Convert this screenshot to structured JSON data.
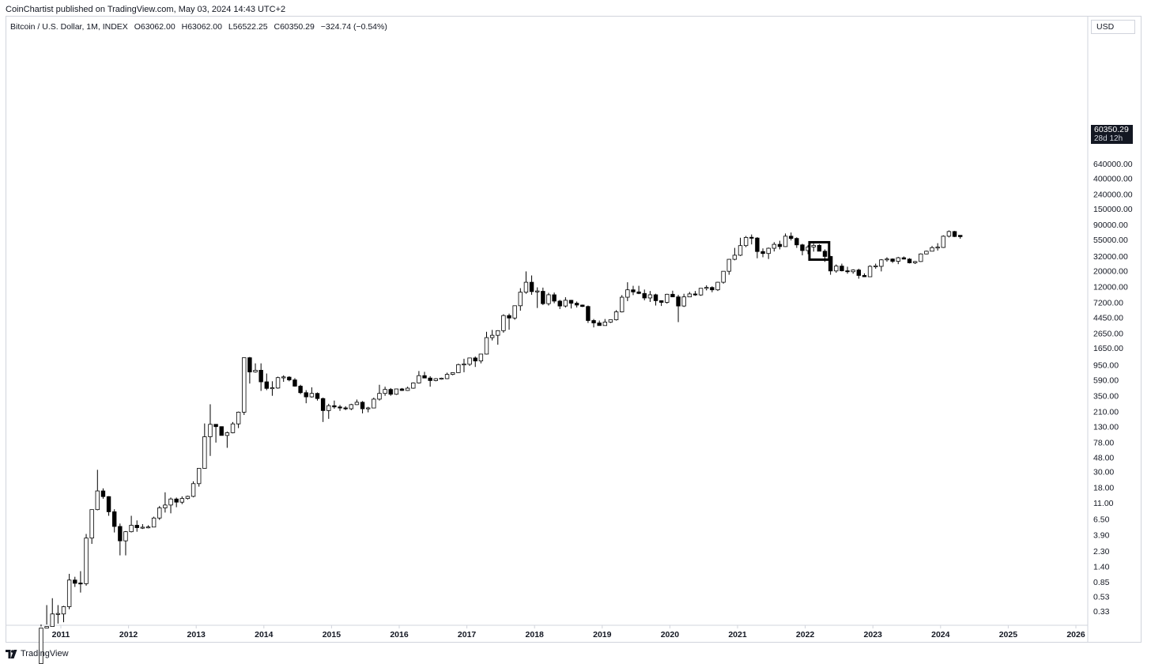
{
  "header": {
    "published_line": "CoinChartist published on TradingView.com, May 03, 2024 14:43 UTC+2"
  },
  "legend": {
    "symbol": "Bitcoin / U.S. Dollar, 1M, INDEX",
    "open": "O63062.00",
    "high": "H63062.00",
    "low": "L56522.25",
    "close": "C60350.29",
    "change": "−324.74 (−0.54%)"
  },
  "price_axis": {
    "currency": "USD",
    "last_price": "60350.29",
    "countdown": "28d 12h"
  },
  "footer": {
    "brand": "TradingView"
  },
  "colors": {
    "up_body": "#ffffff",
    "down_body": "#000000",
    "wick": "#000000",
    "border": "#d1d4dc",
    "highlight_box": "#000000"
  },
  "chart_data": {
    "type": "candlestick",
    "scale": "log",
    "title": "Bitcoin / U.S. Dollar, 1M, INDEX",
    "x_ticks": [
      "2011",
      "2012",
      "2013",
      "2014",
      "2015",
      "2016",
      "2017",
      "2018",
      "2019",
      "2020",
      "2021",
      "2022",
      "2023",
      "2024",
      "2025",
      "2026"
    ],
    "y_ticks": [
      "0.33",
      "0.53",
      "0.85",
      "1.40",
      "2.30",
      "3.90",
      "6.50",
      "11.00",
      "18.00",
      "30.00",
      "48.00",
      "78.00",
      "130.00",
      "210.00",
      "350.00",
      "590.00",
      "950.00",
      "1650.00",
      "2650.00",
      "4450.00",
      "7200.00",
      "12000.00",
      "20000.00",
      "32000.00",
      "55000.00",
      "90000.00",
      "150000.00",
      "240000.00",
      "400000.00",
      "640000.00"
    ],
    "y_tick_values": [
      0.33,
      0.53,
      0.85,
      1.4,
      2.3,
      3.9,
      6.5,
      11,
      18,
      30,
      48,
      78,
      130,
      210,
      350,
      590,
      950,
      1650,
      2650,
      4450,
      7200,
      12000,
      20000,
      32000,
      55000,
      90000,
      150000,
      240000,
      400000,
      640000
    ],
    "start": "2010-09",
    "candles": [
      [
        0.06,
        0.2,
        0.06,
        0.19
      ],
      [
        0.19,
        0.4,
        0.15,
        0.2
      ],
      [
        0.2,
        0.5,
        0.2,
        0.3
      ],
      [
        0.3,
        0.4,
        0.22,
        0.3
      ],
      [
        0.3,
        0.39,
        0.23,
        0.38
      ],
      [
        0.38,
        1.1,
        0.35,
        0.9
      ],
      [
        0.9,
        1.0,
        0.72,
        0.81
      ],
      [
        0.81,
        1.2,
        0.6,
        0.8
      ],
      [
        0.8,
        4.0,
        0.75,
        3.5
      ],
      [
        3.5,
        8.8,
        2.9,
        8.8
      ],
      [
        8.8,
        31.9,
        8.6,
        16.1
      ],
      [
        16.1,
        17.5,
        12.5,
        13.4
      ],
      [
        13.4,
        13.6,
        7.2,
        8.2
      ],
      [
        8.2,
        8.9,
        4.2,
        5.1
      ],
      [
        5.1,
        5.6,
        2.0,
        3.2
      ],
      [
        3.2,
        4.4,
        2.0,
        4.3
      ],
      [
        4.3,
        7.2,
        4.2,
        5.3
      ],
      [
        5.3,
        6.2,
        4.3,
        4.9
      ],
      [
        4.9,
        5.5,
        4.7,
        4.9
      ],
      [
        4.9,
        5.3,
        4.8,
        5.0
      ],
      [
        5.0,
        7.0,
        5.0,
        6.7
      ],
      [
        6.7,
        9.9,
        6.3,
        9.3
      ],
      [
        9.3,
        15.4,
        8.0,
        10.2
      ],
      [
        10.2,
        13.0,
        7.8,
        12.4
      ],
      [
        12.4,
        13.0,
        9.5,
        11.2
      ],
      [
        11.2,
        13.5,
        10.5,
        12.6
      ],
      [
        12.6,
        13.8,
        12.2,
        13.5
      ],
      [
        13.5,
        22.0,
        13.1,
        20.4
      ],
      [
        20.4,
        33.0,
        18.5,
        33.4
      ],
      [
        33.4,
        143.0,
        33.0,
        93.0
      ],
      [
        93.0,
        266.0,
        50.0,
        139.0
      ],
      [
        139.0,
        140.0,
        77.0,
        129.0
      ],
      [
        129.0,
        130.0,
        100.0,
        97.0
      ],
      [
        97.0,
        110.0,
        65.0,
        106.0
      ],
      [
        106.0,
        150.0,
        104.0,
        141.0
      ],
      [
        141.0,
        210.0,
        123.0,
        206.0
      ],
      [
        206.0,
        1160.0,
        188.0,
        1200.0
      ],
      [
        1200.0,
        1230.0,
        520.0,
        757.0
      ],
      [
        757.0,
        1000.0,
        740.0,
        800.0
      ],
      [
        800.0,
        1000.0,
        410.0,
        550.0
      ],
      [
        550.0,
        720.0,
        420.0,
        445.0
      ],
      [
        445.0,
        560.0,
        350.0,
        450.0
      ],
      [
        450.0,
        650.0,
        440.0,
        630.0
      ],
      [
        630.0,
        680.0,
        550.0,
        640.0
      ],
      [
        640.0,
        660.0,
        560.0,
        585.0
      ],
      [
        585.0,
        620.0,
        470.0,
        478.0
      ],
      [
        478.0,
        500.0,
        370.0,
        387.0
      ],
      [
        387.0,
        420.0,
        275.0,
        338.0
      ],
      [
        338.0,
        460.0,
        330.0,
        378.0
      ],
      [
        378.0,
        390.0,
        300.0,
        320.0
      ],
      [
        320.0,
        330.0,
        150.0,
        217.0
      ],
      [
        217.0,
        270.0,
        166.0,
        254.0
      ],
      [
        254.0,
        300.0,
        230.0,
        244.0
      ],
      [
        244.0,
        260.0,
        215.0,
        236.0
      ],
      [
        236.0,
        250.0,
        220.0,
        230.0
      ],
      [
        230.0,
        270.0,
        220.0,
        263.0
      ],
      [
        263.0,
        310.0,
        260.0,
        284.0
      ],
      [
        284.0,
        295.0,
        198.0,
        230.0
      ],
      [
        230.0,
        245.0,
        205.0,
        236.0
      ],
      [
        236.0,
        330.0,
        235.0,
        314.0
      ],
      [
        314.0,
        500.0,
        300.0,
        378.0
      ],
      [
        378.0,
        470.0,
        350.0,
        430.0
      ],
      [
        430.0,
        450.0,
        350.0,
        368.0
      ],
      [
        368.0,
        440.0,
        360.0,
        437.0
      ],
      [
        437.0,
        450.0,
        410.0,
        416.0
      ],
      [
        416.0,
        470.0,
        410.0,
        448.0
      ],
      [
        448.0,
        540.0,
        440.0,
        530.0
      ],
      [
        530.0,
        780.0,
        520.0,
        672.0
      ],
      [
        672.0,
        760.0,
        620.0,
        622.0
      ],
      [
        622.0,
        660.0,
        470.0,
        573.0
      ],
      [
        573.0,
        620.0,
        560.0,
        608.0
      ],
      [
        608.0,
        630.0,
        590.0,
        610.0
      ],
      [
        610.0,
        740.0,
        600.0,
        700.0
      ],
      [
        700.0,
        750.0,
        680.0,
        740.0
      ],
      [
        740.0,
        990.0,
        730.0,
        960.0
      ],
      [
        960.0,
        1160.0,
        750.0,
        970.0
      ],
      [
        970.0,
        1200.0,
        920.0,
        1190.0
      ],
      [
        1190.0,
        1250.0,
        890.0,
        1080.0
      ],
      [
        1080.0,
        1350.0,
        1000.0,
        1350.0
      ],
      [
        1350.0,
        2780.0,
        1330.0,
        2300.0
      ],
      [
        2300.0,
        2950.0,
        2100.0,
        2480.0
      ],
      [
        2480.0,
        2920.0,
        1830.0,
        2880.0
      ],
      [
        2880.0,
        4900.0,
        2700.0,
        4700.0
      ],
      [
        4700.0,
        5000.0,
        2970.0,
        4340.0
      ],
      [
        4340.0,
        6400.0,
        4100.0,
        6450.0
      ],
      [
        6450.0,
        11400.0,
        5500.0,
        10000.0
      ],
      [
        10000.0,
        19600.0,
        9500.0,
        13800.0
      ],
      [
        13800.0,
        17200.0,
        9200.0,
        10200.0
      ],
      [
        10200.0,
        11700.0,
        6000.0,
        10300.0
      ],
      [
        10300.0,
        11600.0,
        6600.0,
        6900.0
      ],
      [
        6900.0,
        9800.0,
        6500.0,
        9200.0
      ],
      [
        9200.0,
        9900.0,
        7000.0,
        7500.0
      ],
      [
        7500.0,
        7800.0,
        5800.0,
        6400.0
      ],
      [
        6400.0,
        8500.0,
        6100.0,
        7700.0
      ],
      [
        7700.0,
        7800.0,
        5900.0,
        7000.0
      ],
      [
        7000.0,
        7400.0,
        6100.0,
        6600.0
      ],
      [
        6600.0,
        6700.0,
        6200.0,
        6300.0
      ],
      [
        6300.0,
        6500.0,
        3700.0,
        4000.0
      ],
      [
        4000.0,
        4200.0,
        3200.0,
        3700.0
      ],
      [
        3700.0,
        4000.0,
        3400.0,
        3400.0
      ],
      [
        3400.0,
        4200.0,
        3400.0,
        3800.0
      ],
      [
        3800.0,
        4100.0,
        3700.0,
        4100.0
      ],
      [
        4100.0,
        5600.0,
        4000.0,
        5300.0
      ],
      [
        5300.0,
        9100.0,
        5200.0,
        8500.0
      ],
      [
        8500.0,
        13800.0,
        7500.0,
        10800.0
      ],
      [
        10800.0,
        12300.0,
        9100.0,
        10100.0
      ],
      [
        10100.0,
        12300.0,
        9400.0,
        9600.0
      ],
      [
        9600.0,
        10900.0,
        7700.0,
        8300.0
      ],
      [
        8300.0,
        10400.0,
        7300.0,
        9200.0
      ],
      [
        9200.0,
        9500.0,
        6500.0,
        7600.0
      ],
      [
        7600.0,
        7700.0,
        6400.0,
        7200.0
      ],
      [
        7200.0,
        9500.0,
        6900.0,
        9350.0
      ],
      [
        9350.0,
        10500.0,
        8500.0,
        8600.0
      ],
      [
        8600.0,
        9200.0,
        3800.0,
        6400.0
      ],
      [
        6400.0,
        9500.0,
        6200.0,
        8600.0
      ],
      [
        8600.0,
        10100.0,
        8600.0,
        9450.0
      ],
      [
        9450.0,
        10400.0,
        8900.0,
        9150.0
      ],
      [
        9150.0,
        11400.0,
        8900.0,
        11350.0
      ],
      [
        11350.0,
        12500.0,
        10600.0,
        11650.0
      ],
      [
        11650.0,
        12100.0,
        10000.0,
        10800.0
      ],
      [
        10800.0,
        14000.0,
        10400.0,
        13800.0
      ],
      [
        13800.0,
        19800.0,
        13200.0,
        19700.0
      ],
      [
        19700.0,
        29300.0,
        17600.0,
        29000.0
      ],
      [
        29000.0,
        42000.0,
        28100.0,
        33100.0
      ],
      [
        33100.0,
        58300.0,
        32300.0,
        45200.0
      ],
      [
        45200.0,
        61700.0,
        43000.0,
        58800.0
      ],
      [
        58800.0,
        64800.0,
        47000.0,
        57700.0
      ],
      [
        57700.0,
        59500.0,
        30000.0,
        37300.0
      ],
      [
        37300.0,
        41300.0,
        31000.0,
        35000.0
      ],
      [
        35000.0,
        42400.0,
        29300.0,
        41500.0
      ],
      [
        41500.0,
        50500.0,
        37400.0,
        47100.0
      ],
      [
        47100.0,
        52900.0,
        40000.0,
        43800.0
      ],
      [
        43800.0,
        66900.0,
        43300.0,
        61300.0
      ],
      [
        61300.0,
        69000.0,
        53400.0,
        57000.0
      ],
      [
        57000.0,
        59100.0,
        42000.0,
        46300.0
      ],
      [
        46300.0,
        47900.0,
        33000.0,
        38500.0
      ],
      [
        38500.0,
        45800.0,
        34300.0,
        43200.0
      ],
      [
        43200.0,
        48200.0,
        37200.0,
        45500.0
      ],
      [
        45500.0,
        47400.0,
        37700.0,
        37700.0
      ],
      [
        37700.0,
        40000.0,
        26700.0,
        31800.0
      ],
      [
        31800.0,
        32400.0,
        17600.0,
        19900.0
      ],
      [
        19900.0,
        24600.0,
        18800.0,
        23300.0
      ],
      [
        23300.0,
        25200.0,
        19600.0,
        20000.0
      ],
      [
        20000.0,
        22800.0,
        18200.0,
        19400.0
      ],
      [
        19400.0,
        21000.0,
        18200.0,
        20500.0
      ],
      [
        20500.0,
        21400.0,
        15500.0,
        17200.0
      ],
      [
        17200.0,
        18400.0,
        16300.0,
        16500.0
      ],
      [
        16500.0,
        23900.0,
        16500.0,
        23100.0
      ],
      [
        23100.0,
        25200.0,
        21400.0,
        23100.0
      ],
      [
        23100.0,
        29200.0,
        19600.0,
        28500.0
      ],
      [
        28500.0,
        31000.0,
        26900.0,
        29300.0
      ],
      [
        29300.0,
        29900.0,
        25800.0,
        27200.0
      ],
      [
        27200.0,
        31400.0,
        24800.0,
        30500.0
      ],
      [
        30500.0,
        31800.0,
        28900.0,
        29200.0
      ],
      [
        29200.0,
        30100.0,
        25400.0,
        25900.0
      ],
      [
        25900.0,
        27500.0,
        24900.0,
        27000.0
      ],
      [
        27000.0,
        35200.0,
        26600.0,
        34500.0
      ],
      [
        34500.0,
        38400.0,
        34100.0,
        37700.0
      ],
      [
        37700.0,
        44700.0,
        37600.0,
        42300.0
      ],
      [
        42300.0,
        48900.0,
        38500.0,
        42600.0
      ],
      [
        42600.0,
        63000.0,
        41900.0,
        61200.0
      ],
      [
        61200.0,
        73800.0,
        59000.0,
        71300.0
      ],
      [
        71300.0,
        72700.0,
        59600.0,
        60650.0
      ],
      [
        63062.0,
        63062.0,
        56522.25,
        60350.29
      ]
    ],
    "highlight_box": {
      "from": "2022-02",
      "to": "2022-04"
    }
  }
}
